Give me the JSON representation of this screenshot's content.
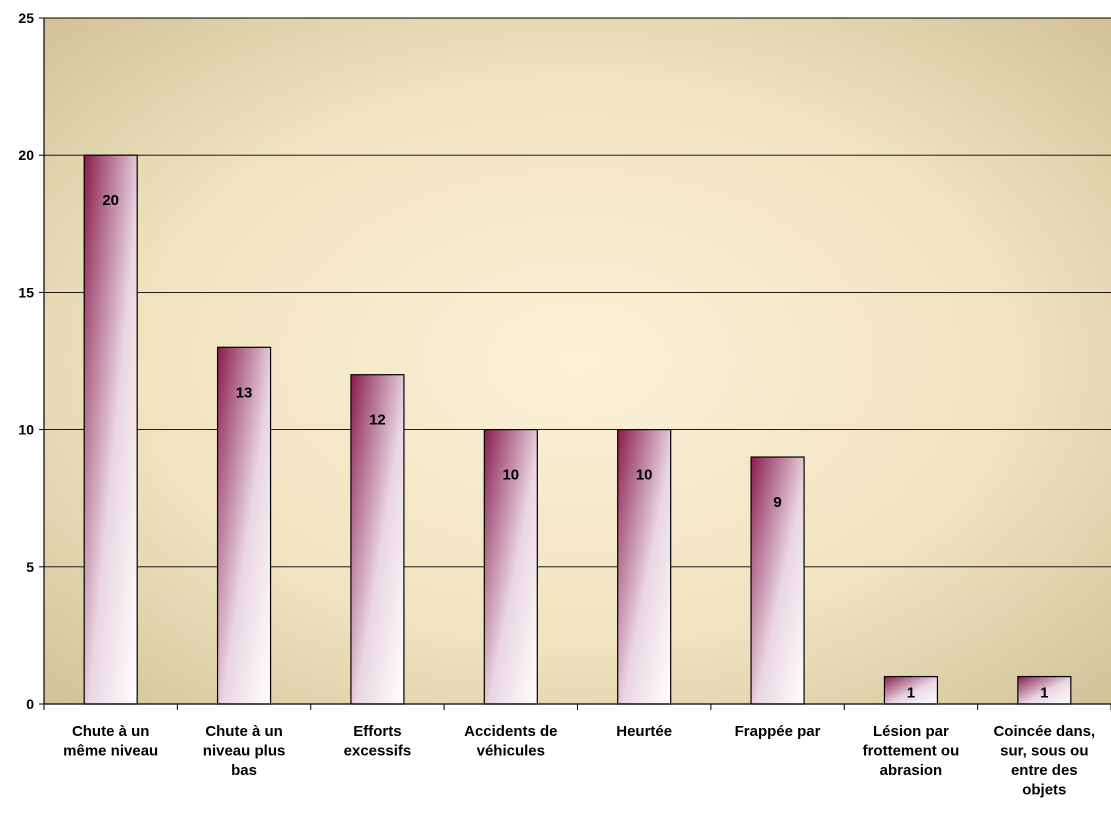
{
  "chart_data": {
    "type": "bar",
    "categories": [
      [
        "Chute à un",
        "même niveau"
      ],
      [
        "Chute à un",
        "niveau plus",
        "bas"
      ],
      [
        "Efforts",
        "excessifs"
      ],
      [
        "Accidents de",
        "véhicules"
      ],
      [
        "Heurtée"
      ],
      [
        "Frappée par"
      ],
      [
        "Lésion par",
        "frottement ou",
        "abrasion"
      ],
      [
        "Coincée dans,",
        "sur, sous ou",
        "entre des",
        "objets"
      ]
    ],
    "values": [
      20,
      13,
      12,
      10,
      10,
      9,
      1,
      1
    ],
    "data_labels": [
      "20",
      "13",
      "12",
      "10",
      "10",
      "9",
      "1",
      "1"
    ],
    "ylim": [
      0,
      25
    ],
    "yticks": [
      0,
      5,
      10,
      15,
      20,
      25
    ],
    "grid": true,
    "legend": false,
    "title": "",
    "xlabel": "",
    "ylabel": "",
    "colors": {
      "bar_dark": "#8b1a4a",
      "bar_light": "#ffffff",
      "plot_center": "#fbefd6",
      "plot_edge": "#d2c39a",
      "gridline": "#000000"
    }
  }
}
